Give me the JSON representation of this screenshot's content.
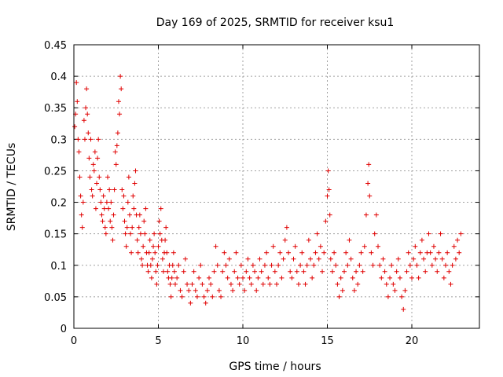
{
  "chart_data": {
    "type": "scatter",
    "title": "Day 169 of 2025, SRMTID for receiver ksu1",
    "xlabel": "GPS time / hours",
    "ylabel": "SRMTID / TECUs",
    "xlim": [
      0,
      24
    ],
    "ylim": [
      0,
      0.45
    ],
    "xticks": [
      0,
      5,
      10,
      15,
      20
    ],
    "yticks": [
      0,
      0.05,
      0.1,
      0.15,
      0.2,
      0.25,
      0.3,
      0.35,
      0.4,
      0.45
    ],
    "grid": true,
    "marker": "+",
    "color": "#e00000",
    "series": [
      {
        "name": "SRMTID",
        "points": [
          [
            0.05,
            0.32
          ],
          [
            0.1,
            0.34
          ],
          [
            0.15,
            0.39
          ],
          [
            0.2,
            0.36
          ],
          [
            0.25,
            0.3
          ],
          [
            0.3,
            0.28
          ],
          [
            0.35,
            0.24
          ],
          [
            0.4,
            0.21
          ],
          [
            0.45,
            0.18
          ],
          [
            0.5,
            0.16
          ],
          [
            0.55,
            0.2
          ],
          [
            0.6,
            0.33
          ],
          [
            0.65,
            0.3
          ],
          [
            0.7,
            0.35
          ],
          [
            0.75,
            0.38
          ],
          [
            0.8,
            0.34
          ],
          [
            0.85,
            0.31
          ],
          [
            0.9,
            0.27
          ],
          [
            0.95,
            0.24
          ],
          [
            1.0,
            0.3
          ],
          [
            1.05,
            0.22
          ],
          [
            1.1,
            0.21
          ],
          [
            1.15,
            0.26
          ],
          [
            1.2,
            0.25
          ],
          [
            1.25,
            0.28
          ],
          [
            1.3,
            0.19
          ],
          [
            1.35,
            0.23
          ],
          [
            1.4,
            0.27
          ],
          [
            1.45,
            0.3
          ],
          [
            1.5,
            0.24
          ],
          [
            1.55,
            0.22
          ],
          [
            1.6,
            0.2
          ],
          [
            1.65,
            0.18
          ],
          [
            1.7,
            0.17
          ],
          [
            1.75,
            0.21
          ],
          [
            1.8,
            0.19
          ],
          [
            1.85,
            0.16
          ],
          [
            1.9,
            0.15
          ],
          [
            1.95,
            0.2
          ],
          [
            2.0,
            0.24
          ],
          [
            2.05,
            0.19
          ],
          [
            2.1,
            0.22
          ],
          [
            2.15,
            0.17
          ],
          [
            2.2,
            0.2
          ],
          [
            2.25,
            0.16
          ],
          [
            2.3,
            0.14
          ],
          [
            2.35,
            0.18
          ],
          [
            2.4,
            0.22
          ],
          [
            2.45,
            0.28
          ],
          [
            2.5,
            0.26
          ],
          [
            2.55,
            0.29
          ],
          [
            2.6,
            0.31
          ],
          [
            2.65,
            0.36
          ],
          [
            2.7,
            0.34
          ],
          [
            2.75,
            0.4
          ],
          [
            2.8,
            0.38
          ],
          [
            2.85,
            0.22
          ],
          [
            2.9,
            0.19
          ],
          [
            2.95,
            0.21
          ],
          [
            3.0,
            0.17
          ],
          [
            3.05,
            0.15
          ],
          [
            3.1,
            0.13
          ],
          [
            3.15,
            0.16
          ],
          [
            3.2,
            0.2
          ],
          [
            3.25,
            0.24
          ],
          [
            3.3,
            0.18
          ],
          [
            3.35,
            0.15
          ],
          [
            3.4,
            0.12
          ],
          [
            3.45,
            0.16
          ],
          [
            3.5,
            0.21
          ],
          [
            3.55,
            0.19
          ],
          [
            3.6,
            0.23
          ],
          [
            3.65,
            0.25
          ],
          [
            3.7,
            0.18
          ],
          [
            3.75,
            0.14
          ],
          [
            3.8,
            0.12
          ],
          [
            3.85,
            0.16
          ],
          [
            3.9,
            0.18
          ],
          [
            3.95,
            0.15
          ],
          [
            4.0,
            0.11
          ],
          [
            4.05,
            0.1
          ],
          [
            4.1,
            0.13
          ],
          [
            4.15,
            0.17
          ],
          [
            4.2,
            0.15
          ],
          [
            4.25,
            0.19
          ],
          [
            4.3,
            0.12
          ],
          [
            4.35,
            0.1
          ],
          [
            4.4,
            0.09
          ],
          [
            4.45,
            0.12
          ],
          [
            4.5,
            0.14
          ],
          [
            4.55,
            0.1
          ],
          [
            4.6,
            0.08
          ],
          [
            4.65,
            0.11
          ],
          [
            4.7,
            0.13
          ],
          [
            4.75,
            0.15
          ],
          [
            4.8,
            0.12
          ],
          [
            4.85,
            0.09
          ],
          [
            4.9,
            0.07
          ],
          [
            4.95,
            0.1
          ],
          [
            5.0,
            0.13
          ],
          [
            5.05,
            0.17
          ],
          [
            5.1,
            0.15
          ],
          [
            5.15,
            0.19
          ],
          [
            5.2,
            0.14
          ],
          [
            5.25,
            0.11
          ],
          [
            5.3,
            0.09
          ],
          [
            5.35,
            0.12
          ],
          [
            5.4,
            0.14
          ],
          [
            5.45,
            0.16
          ],
          [
            5.5,
            0.12
          ],
          [
            5.55,
            0.09
          ],
          [
            5.6,
            0.08
          ],
          [
            5.65,
            0.1
          ],
          [
            5.7,
            0.07
          ],
          [
            5.75,
            0.05
          ],
          [
            5.8,
            0.08
          ],
          [
            5.85,
            0.1
          ],
          [
            5.9,
            0.12
          ],
          [
            5.95,
            0.09
          ],
          [
            6.0,
            0.07
          ],
          [
            6.1,
            0.08
          ],
          [
            6.2,
            0.1
          ],
          [
            6.3,
            0.06
          ],
          [
            6.4,
            0.05
          ],
          [
            6.5,
            0.09
          ],
          [
            6.6,
            0.11
          ],
          [
            6.7,
            0.07
          ],
          [
            6.8,
            0.06
          ],
          [
            6.9,
            0.04
          ],
          [
            7.0,
            0.07
          ],
          [
            7.1,
            0.09
          ],
          [
            7.2,
            0.06
          ],
          [
            7.3,
            0.05
          ],
          [
            7.4,
            0.08
          ],
          [
            7.5,
            0.1
          ],
          [
            7.6,
            0.07
          ],
          [
            7.7,
            0.05
          ],
          [
            7.8,
            0.04
          ],
          [
            7.9,
            0.06
          ],
          [
            8.0,
            0.08
          ],
          [
            8.1,
            0.07
          ],
          [
            8.2,
            0.05
          ],
          [
            8.3,
            0.09
          ],
          [
            8.4,
            0.13
          ],
          [
            8.5,
            0.1
          ],
          [
            8.6,
            0.06
          ],
          [
            8.7,
            0.05
          ],
          [
            8.8,
            0.09
          ],
          [
            8.9,
            0.12
          ],
          [
            9.0,
            0.1
          ],
          [
            9.1,
            0.08
          ],
          [
            9.2,
            0.11
          ],
          [
            9.3,
            0.07
          ],
          [
            9.4,
            0.06
          ],
          [
            9.5,
            0.09
          ],
          [
            9.6,
            0.12
          ],
          [
            9.7,
            0.08
          ],
          [
            9.8,
            0.07
          ],
          [
            9.9,
            0.1
          ],
          [
            10.0,
            0.08
          ],
          [
            10.1,
            0.06
          ],
          [
            10.2,
            0.09
          ],
          [
            10.3,
            0.11
          ],
          [
            10.4,
            0.08
          ],
          [
            10.5,
            0.07
          ],
          [
            10.6,
            0.1
          ],
          [
            10.7,
            0.09
          ],
          [
            10.8,
            0.06
          ],
          [
            10.9,
            0.08
          ],
          [
            11.0,
            0.11
          ],
          [
            11.1,
            0.09
          ],
          [
            11.2,
            0.07
          ],
          [
            11.3,
            0.1
          ],
          [
            11.4,
            0.12
          ],
          [
            11.5,
            0.08
          ],
          [
            11.6,
            0.07
          ],
          [
            11.7,
            0.1
          ],
          [
            11.8,
            0.13
          ],
          [
            11.9,
            0.09
          ],
          [
            12.0,
            0.07
          ],
          [
            12.1,
            0.1
          ],
          [
            12.2,
            0.12
          ],
          [
            12.3,
            0.08
          ],
          [
            12.4,
            0.11
          ],
          [
            12.5,
            0.14
          ],
          [
            12.6,
            0.16
          ],
          [
            12.7,
            0.12
          ],
          [
            12.8,
            0.09
          ],
          [
            12.9,
            0.08
          ],
          [
            13.0,
            0.11
          ],
          [
            13.1,
            0.13
          ],
          [
            13.2,
            0.09
          ],
          [
            13.3,
            0.07
          ],
          [
            13.4,
            0.1
          ],
          [
            13.5,
            0.12
          ],
          [
            13.6,
            0.09
          ],
          [
            13.7,
            0.07
          ],
          [
            13.8,
            0.1
          ],
          [
            13.9,
            0.14
          ],
          [
            14.0,
            0.11
          ],
          [
            14.1,
            0.08
          ],
          [
            14.2,
            0.1
          ],
          [
            14.3,
            0.12
          ],
          [
            14.4,
            0.15
          ],
          [
            14.5,
            0.11
          ],
          [
            14.6,
            0.13
          ],
          [
            14.7,
            0.09
          ],
          [
            14.8,
            0.12
          ],
          [
            14.9,
            0.17
          ],
          [
            15.0,
            0.21
          ],
          [
            15.05,
            0.25
          ],
          [
            15.1,
            0.22
          ],
          [
            15.15,
            0.18
          ],
          [
            15.2,
            0.11
          ],
          [
            15.3,
            0.09
          ],
          [
            15.4,
            0.12
          ],
          [
            15.5,
            0.1
          ],
          [
            15.6,
            0.07
          ],
          [
            15.7,
            0.05
          ],
          [
            15.8,
            0.08
          ],
          [
            15.9,
            0.06
          ],
          [
            16.0,
            0.09
          ],
          [
            16.1,
            0.12
          ],
          [
            16.2,
            0.1
          ],
          [
            16.3,
            0.14
          ],
          [
            16.4,
            0.11
          ],
          [
            16.5,
            0.08
          ],
          [
            16.6,
            0.06
          ],
          [
            16.7,
            0.09
          ],
          [
            16.8,
            0.07
          ],
          [
            16.9,
            0.1
          ],
          [
            17.0,
            0.12
          ],
          [
            17.1,
            0.09
          ],
          [
            17.2,
            0.13
          ],
          [
            17.3,
            0.18
          ],
          [
            17.4,
            0.23
          ],
          [
            17.45,
            0.26
          ],
          [
            17.5,
            0.21
          ],
          [
            17.6,
            0.12
          ],
          [
            17.7,
            0.1
          ],
          [
            17.8,
            0.15
          ],
          [
            17.9,
            0.18
          ],
          [
            18.0,
            0.13
          ],
          [
            18.1,
            0.1
          ],
          [
            18.2,
            0.08
          ],
          [
            18.3,
            0.11
          ],
          [
            18.4,
            0.09
          ],
          [
            18.5,
            0.07
          ],
          [
            18.6,
            0.05
          ],
          [
            18.7,
            0.08
          ],
          [
            18.8,
            0.1
          ],
          [
            18.9,
            0.07
          ],
          [
            19.0,
            0.06
          ],
          [
            19.1,
            0.09
          ],
          [
            19.2,
            0.11
          ],
          [
            19.3,
            0.08
          ],
          [
            19.4,
            0.05
          ],
          [
            19.5,
            0.03
          ],
          [
            19.6,
            0.06
          ],
          [
            19.7,
            0.09
          ],
          [
            19.8,
            0.12
          ],
          [
            19.9,
            0.1
          ],
          [
            20.0,
            0.08
          ],
          [
            20.1,
            0.11
          ],
          [
            20.2,
            0.13
          ],
          [
            20.3,
            0.1
          ],
          [
            20.4,
            0.08
          ],
          [
            20.5,
            0.12
          ],
          [
            20.6,
            0.14
          ],
          [
            20.7,
            0.11
          ],
          [
            20.8,
            0.09
          ],
          [
            20.9,
            0.12
          ],
          [
            21.0,
            0.15
          ],
          [
            21.1,
            0.12
          ],
          [
            21.2,
            0.1
          ],
          [
            21.3,
            0.13
          ],
          [
            21.4,
            0.11
          ],
          [
            21.5,
            0.09
          ],
          [
            21.6,
            0.12
          ],
          [
            21.7,
            0.15
          ],
          [
            21.8,
            0.11
          ],
          [
            21.9,
            0.08
          ],
          [
            22.0,
            0.1
          ],
          [
            22.1,
            0.12
          ],
          [
            22.2,
            0.09
          ],
          [
            22.3,
            0.07
          ],
          [
            22.4,
            0.1
          ],
          [
            22.5,
            0.13
          ],
          [
            22.6,
            0.11
          ],
          [
            22.7,
            0.14
          ],
          [
            22.8,
            0.12
          ],
          [
            22.9,
            0.15
          ]
        ]
      }
    ]
  }
}
